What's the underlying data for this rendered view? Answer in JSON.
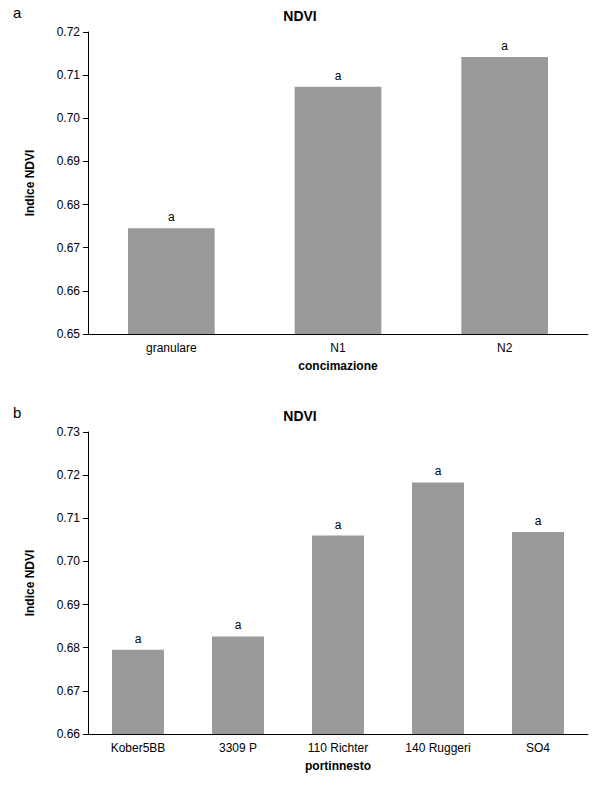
{
  "chart_data": [
    {
      "type": "bar",
      "panel_label": "a",
      "title": "NDVI",
      "x_label": "concimazione",
      "y_label": "Indice NDVI",
      "categories": [
        "granulare",
        "N1",
        "N2"
      ],
      "values": [
        0.6745,
        0.7073,
        0.7142
      ],
      "annotations": [
        "a",
        "a",
        "a"
      ],
      "color": "#999999",
      "ylim": [
        0.65,
        0.72
      ],
      "yticks": [
        0.65,
        0.66,
        0.67,
        0.68,
        0.69,
        {
          "value": 0.7,
          "label": "0.70"
        },
        0.71,
        0.72
      ],
      "grid": false
    },
    {
      "type": "bar",
      "panel_label": "b",
      "title": "NDVI",
      "x_label": "portinnesto",
      "y_label": "Indice NDVI",
      "categories": [
        "Kober5BB",
        "3309 P",
        "110 Richter",
        "140 Ruggeri",
        "SO4"
      ],
      "values": [
        0.6795,
        0.6826,
        0.706,
        0.7183,
        0.7068
      ],
      "annotations": [
        "a",
        "a",
        "a",
        "a",
        "a"
      ],
      "color": "#999999",
      "ylim": [
        0.66,
        0.73
      ],
      "yticks": [
        0.66,
        0.67,
        0.68,
        0.69,
        {
          "value": 0.7,
          "label": "0.70"
        },
        0.71,
        0.72,
        0.73
      ],
      "grid": false
    }
  ]
}
